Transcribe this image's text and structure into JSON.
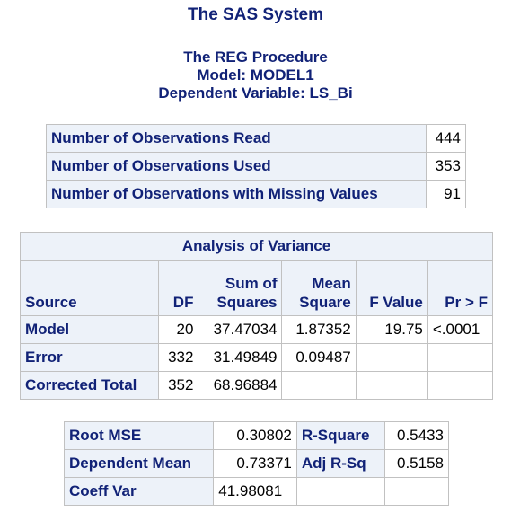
{
  "header": {
    "system_title": "The SAS System",
    "procedure": "The REG Procedure",
    "model": "Model: MODEL1",
    "dependent_variable": "Dependent Variable: LS_Bi"
  },
  "observations": {
    "rows": [
      {
        "label": "Number of Observations Read",
        "value": "444"
      },
      {
        "label": "Number of Observations Used",
        "value": "353"
      },
      {
        "label": "Number of Observations with Missing Values",
        "value": "91"
      }
    ]
  },
  "anova": {
    "title": "Analysis of Variance",
    "headers": {
      "source": "Source",
      "df": "DF",
      "ss_line1": "Sum of",
      "ss_line2": "Squares",
      "ms_line1": "Mean",
      "ms_line2": "Square",
      "f_value": "F Value",
      "pr_f": "Pr > F"
    },
    "rows": [
      {
        "source": "Model",
        "df": "20",
        "ss": "37.47034",
        "ms": "1.87352",
        "f": "19.75",
        "p": "<.0001"
      },
      {
        "source": "Error",
        "df": "332",
        "ss": "31.49849",
        "ms": "0.09487",
        "f": "",
        "p": ""
      },
      {
        "source": "Corrected Total",
        "df": "352",
        "ss": "68.96884",
        "ms": "",
        "f": "",
        "p": ""
      }
    ]
  },
  "fit": {
    "rows": [
      {
        "label1": "Root MSE",
        "value1": "0.30802",
        "label2": "R-Square",
        "value2": "0.5433"
      },
      {
        "label1": "Dependent Mean",
        "value1": "0.73371",
        "label2": "Adj R-Sq",
        "value2": "0.5158"
      },
      {
        "label1": "Coeff Var",
        "value1": "41.98081",
        "label2": "",
        "value2": ""
      }
    ]
  },
  "colors": {
    "header_text": "#112277",
    "header_bg": "#edf2f9",
    "grid": "#c1c1c1"
  }
}
